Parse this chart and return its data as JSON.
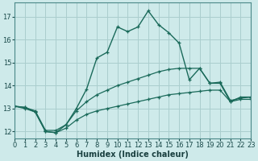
{
  "xlabel": "Humidex (Indice chaleur)",
  "x_ticks": [
    0,
    1,
    2,
    3,
    4,
    5,
    6,
    7,
    8,
    9,
    10,
    11,
    12,
    13,
    14,
    15,
    16,
    17,
    18,
    19,
    20,
    21,
    22,
    23
  ],
  "y_ticks": [
    12,
    13,
    14,
    15,
    16,
    17
  ],
  "xlim": [
    0,
    23
  ],
  "ylim": [
    11.7,
    17.6
  ],
  "background_color": "#ceeaea",
  "grid_color": "#aacece",
  "line_color": "#1a6a5a",
  "series": {
    "main": {
      "x": [
        0,
        1,
        2,
        3,
        4,
        5,
        6,
        7,
        8,
        9,
        10,
        11,
        12,
        13,
        14,
        15,
        16,
        17,
        18,
        19,
        20,
        21,
        22,
        23
      ],
      "y": [
        13.1,
        13.05,
        12.85,
        12.0,
        11.95,
        12.3,
        13.0,
        13.85,
        15.2,
        15.45,
        16.55,
        16.35,
        16.55,
        17.25,
        16.65,
        16.3,
        15.85,
        14.25,
        14.75,
        14.1,
        14.1,
        13.3,
        13.5,
        13.5
      ]
    },
    "upper": {
      "x": [
        0,
        1,
        2,
        3,
        4,
        5,
        6,
        7,
        8,
        9,
        10,
        11,
        12,
        13,
        14,
        15,
        16,
        17,
        18,
        19,
        20,
        21,
        22,
        23
      ],
      "y": [
        13.1,
        13.05,
        12.9,
        12.05,
        12.05,
        12.3,
        12.9,
        13.3,
        13.6,
        13.8,
        14.0,
        14.15,
        14.3,
        14.45,
        14.6,
        14.7,
        14.75,
        14.75,
        14.75,
        14.1,
        14.15,
        13.35,
        13.45,
        13.5
      ]
    },
    "lower": {
      "x": [
        0,
        1,
        2,
        3,
        4,
        5,
        6,
        7,
        8,
        9,
        10,
        11,
        12,
        13,
        14,
        15,
        16,
        17,
        18,
        19,
        20,
        21,
        22,
        23
      ],
      "y": [
        13.1,
        13.0,
        12.85,
        12.0,
        11.95,
        12.15,
        12.5,
        12.75,
        12.9,
        13.0,
        13.1,
        13.2,
        13.3,
        13.4,
        13.5,
        13.6,
        13.65,
        13.7,
        13.75,
        13.8,
        13.8,
        13.3,
        13.4,
        13.4
      ]
    }
  }
}
